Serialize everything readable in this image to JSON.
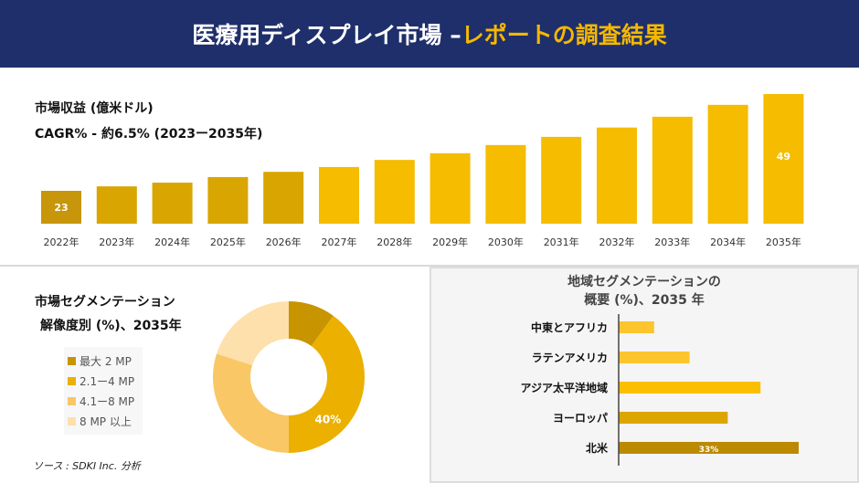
{
  "header": {
    "title_main": "医療用ディスプレイ市場 –",
    "title_accent": "レポートの調査結果"
  },
  "revenue": {
    "title": "市場収益 (億米ドル)",
    "cagr": "CAGR% - 約6.5% (2023ー2035年)"
  },
  "resolution": {
    "title1": "市場セグメンテーション",
    "title2": "解像度別 (%)、2035年"
  },
  "region": {
    "title1": "地域セグメンテーションの",
    "title2": "概要 (%)、2035 年"
  },
  "source": "ソース : SDKI Inc. 分析",
  "chart_data": [
    {
      "type": "bar",
      "title": "市場収益 (億米ドル)",
      "categories": [
        "2022年",
        "2023年",
        "2024年",
        "2025年",
        "2026年",
        "2027年",
        "2028年",
        "2029年",
        "2030年",
        "2031年",
        "2032年",
        "2033年",
        "2034年",
        "2035年"
      ],
      "values": [
        23,
        24.2,
        25.2,
        26.7,
        28.1,
        29.4,
        31.3,
        33.1,
        35.3,
        37.5,
        40.0,
        42.9,
        46.1,
        49
      ],
      "data_labels": {
        "0": "23",
        "13": "49"
      },
      "colors": [
        "#c8960a",
        "#d9a500",
        "#f5bc00"
      ],
      "grid": false
    },
    {
      "type": "pie",
      "donut": true,
      "title": "解像度別 (%)、2035年",
      "categories": [
        "最大 2 MP",
        "2.1ー4 MP",
        "4.1ー8 MP",
        "8 MP 以上"
      ],
      "values": [
        10,
        40,
        30,
        20
      ],
      "data_labels": {
        "1": "40%"
      },
      "colors": [
        "#c89400",
        "#ebb000",
        "#fac766",
        "#fde0ab"
      ],
      "legend": "left"
    },
    {
      "type": "bar",
      "orientation": "horizontal",
      "title": "地域セグメンテーションの概要 (%)、2035 年",
      "categories": [
        "中東とアフリカ",
        "ラテンアメリカ",
        "アジア太平洋地域",
        "ヨーロッパ",
        "北米"
      ],
      "values": [
        6.5,
        13,
        26,
        20,
        33
      ],
      "data_labels": {
        "4": "33%"
      },
      "colors": [
        "#fcc52e",
        "#fcc52e",
        "#fbbf00",
        "#dca600",
        "#bb8a00"
      ]
    }
  ]
}
